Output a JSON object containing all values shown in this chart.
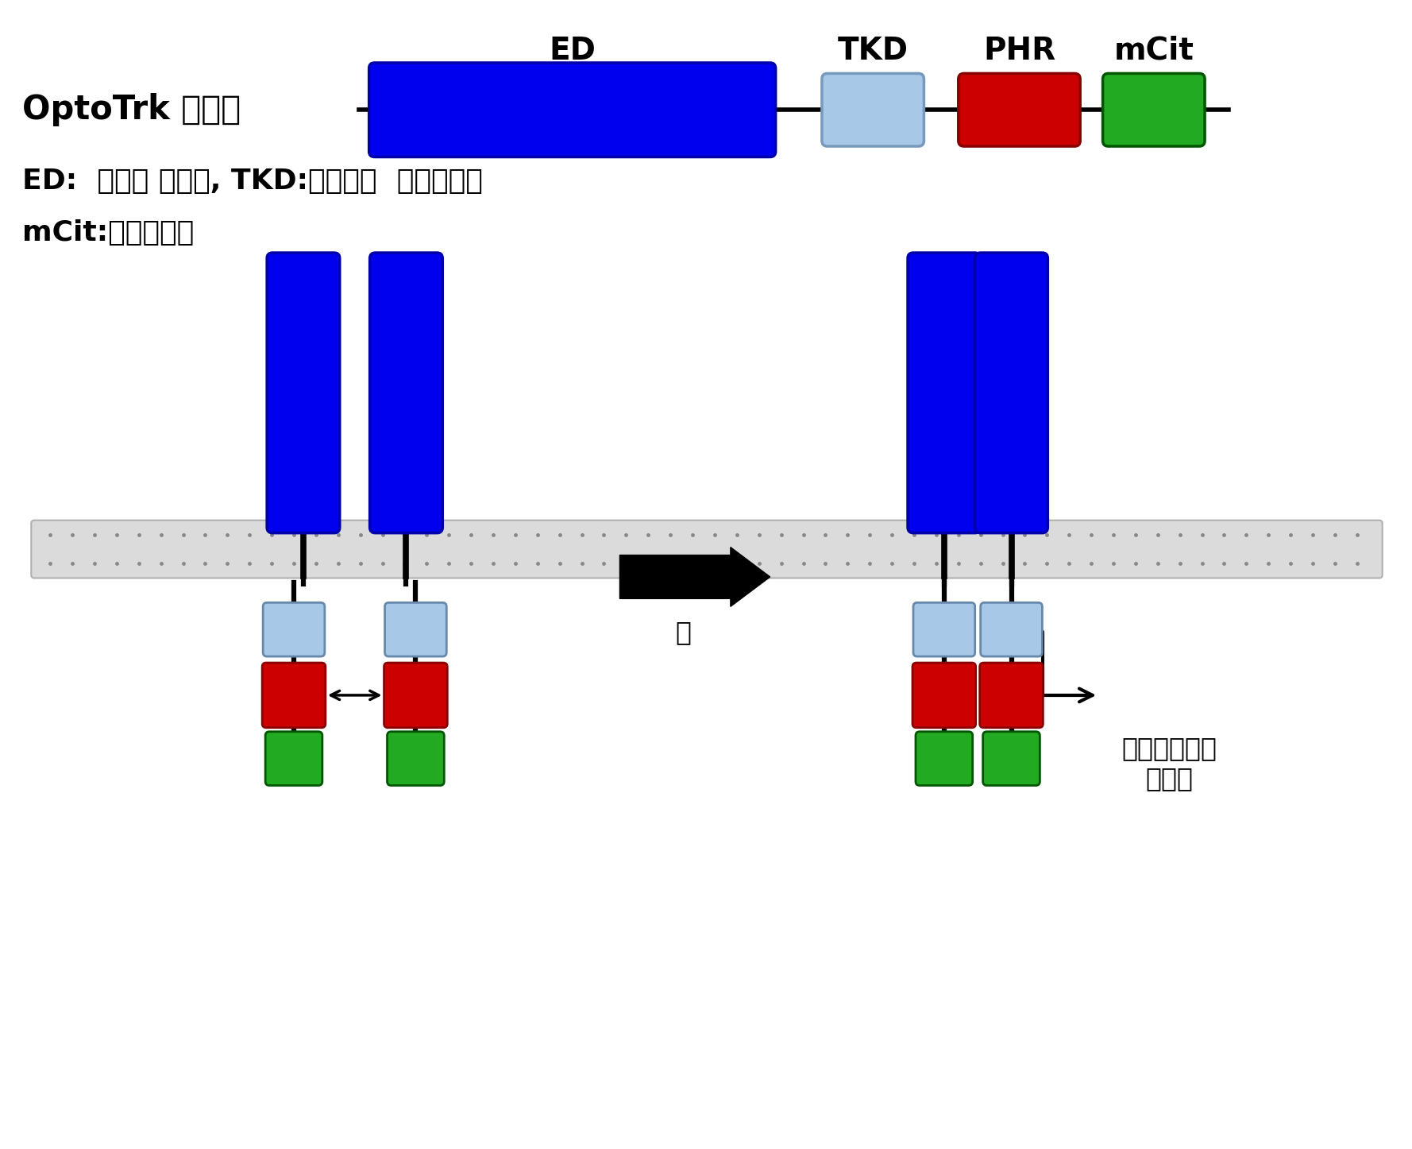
{
  "bg_color": "#ffffff",
  "label_optotrk": "OptoTrk 수용체",
  "label_ED": "ED",
  "label_TKD": "TKD",
  "label_PHR": "PHR",
  "label_mCit": "mCit",
  "desc_line1": "ED:  세포밖 도메인, TKD:타이로신  인산화효소",
  "desc_line2": "mCit:형광단백질",
  "label_light": "빛",
  "label_signal": "신호전달과정\n활성화",
  "color_blue": "#0000ee",
  "color_lightblue": "#a8c8e8",
  "color_red": "#cc0000",
  "color_green": "#22aa22",
  "color_black": "#000000",
  "color_membrane": "#cccccc",
  "color_mem_dot": "#888888"
}
